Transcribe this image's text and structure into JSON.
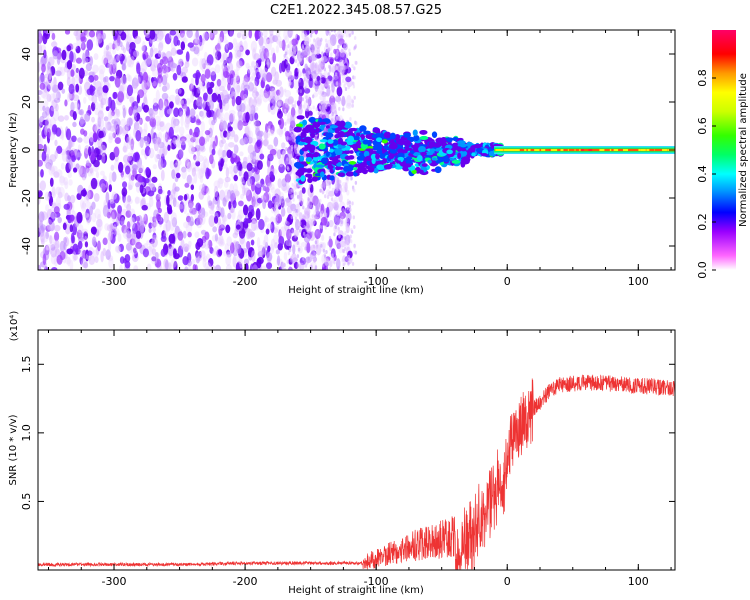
{
  "figure": {
    "title": "C2E1.2022.345.08.57.G25",
    "colors": {
      "trace": "#ee3333",
      "frame": "#000000"
    }
  },
  "chart_data": [
    {
      "type": "heatmap",
      "xlabel": "Height of straight line (km)",
      "ylabel": "Frequency (Hz)",
      "xlim": [
        -358,
        128
      ],
      "ylim": [
        -50,
        50
      ],
      "x_ticks": [
        "-300",
        "-200",
        "-100",
        "0",
        "100"
      ],
      "x_tick_values": [
        -300,
        -200,
        -100,
        0,
        100
      ],
      "y_ticks": [
        "40",
        "20",
        "0",
        "-20",
        "-40"
      ],
      "y_tick_values": [
        40,
        20,
        0,
        -20,
        -40
      ],
      "colorbar": {
        "label": "Normalized spectral amplitude",
        "ticks": [
          "0.0",
          "0.2",
          "0.4",
          "0.6",
          "0.8"
        ],
        "tick_values": [
          0.0,
          0.2,
          0.4,
          0.6,
          0.8
        ],
        "range": [
          0,
          1
        ]
      },
      "description_regions": [
        {
          "x_range": [
            -358,
            -120
          ],
          "freq_range": [
            -50,
            50
          ],
          "amplitude": 0.1
        },
        {
          "x_range": [
            -160,
            -10
          ],
          "freq_range": [
            -15,
            12
          ],
          "amplitude": 0.35
        },
        {
          "x_range": [
            -10,
            128
          ],
          "freq_range": [
            -1,
            1
          ],
          "amplitude": 0.9
        }
      ]
    },
    {
      "type": "line",
      "xlabel": "Height of straight line (km)",
      "ylabel": "SNR (10 * v/v)",
      "y_multiplier": "(x10⁴)",
      "xlim": [
        -358,
        128
      ],
      "ylim": [
        0,
        1.75
      ],
      "x_ticks": [
        "-300",
        "-200",
        "-100",
        "0",
        "100"
      ],
      "x_tick_values": [
        -300,
        -200,
        -100,
        0,
        100
      ],
      "y_ticks": [
        "1.5",
        "1.0",
        "0.5"
      ],
      "y_tick_values": [
        1.5,
        1.0,
        0.5
      ],
      "series": [
        {
          "x": [
            -358,
            -320,
            -280,
            -240,
            -200,
            -160,
            -130,
            -110,
            -100,
            -90,
            -80,
            -70,
            -60,
            -50,
            -40,
            -30,
            -25,
            -20,
            -15,
            -12,
            -10,
            -5,
            0,
            5,
            10,
            15,
            20,
            25,
            30,
            35,
            40,
            50,
            60,
            70,
            80,
            90,
            100,
            110,
            120,
            128
          ],
          "y": [
            0.04,
            0.04,
            0.04,
            0.04,
            0.05,
            0.05,
            0.05,
            0.05,
            0.08,
            0.12,
            0.15,
            0.18,
            0.2,
            0.22,
            0.25,
            0.35,
            0.45,
            0.55,
            0.65,
            0.72,
            0.78,
            0.82,
            0.88,
            0.95,
            1.05,
            1.12,
            1.18,
            1.22,
            1.28,
            1.32,
            1.35,
            1.36,
            1.37,
            1.36,
            1.36,
            1.35,
            1.34,
            1.34,
            1.33,
            1.32
          ]
        }
      ]
    }
  ]
}
